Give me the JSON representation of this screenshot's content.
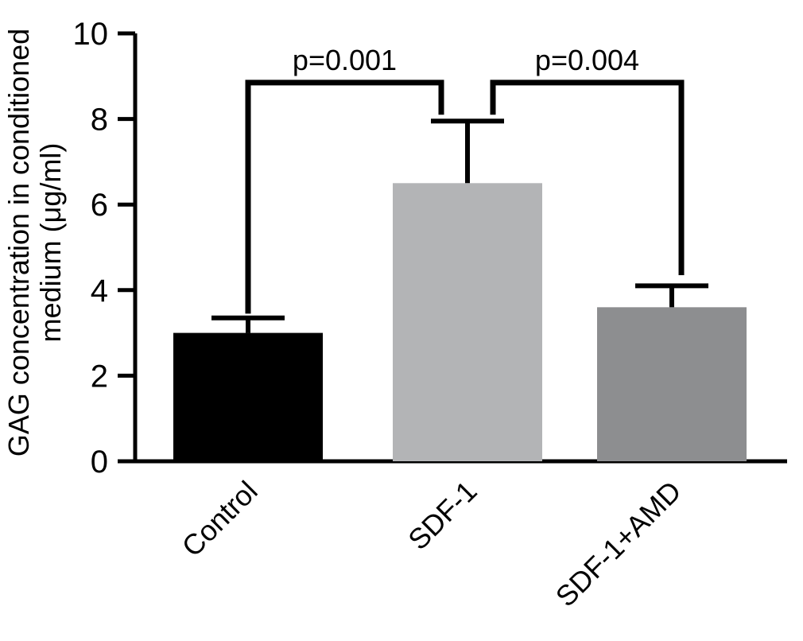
{
  "chart_data": {
    "type": "bar",
    "title": "",
    "ylabel_lines": [
      "GAG concentration in conditioned",
      "medium (μg/ml)"
    ],
    "xlabel": "",
    "categories": [
      "Control",
      "SDF-1",
      "SDF-1+AMD"
    ],
    "values": [
      3.0,
      6.5,
      3.6
    ],
    "errors_upper": [
      0.35,
      1.45,
      0.5
    ],
    "bar_colors": [
      "#000000",
      "#b3b4b6",
      "#8d8e90"
    ],
    "ylim": [
      0,
      10
    ],
    "yticks": [
      0,
      2,
      4,
      6,
      8,
      10
    ],
    "grid": false,
    "legend": "none",
    "significance": [
      {
        "label": "p=0.001",
        "from": 0,
        "to": 1,
        "top": 8.85,
        "from_drop": 3.45,
        "to_drop": 8.1,
        "from_dx": 0,
        "to_dx": -33
      },
      {
        "label": "p=0.004",
        "from": 1,
        "to": 2,
        "top": 8.85,
        "from_drop": 8.1,
        "to_drop": 4.35,
        "from_dx": 32,
        "to_dx": 12
      }
    ]
  },
  "style": {
    "axis_color": "#000000",
    "background": "#ffffff"
  }
}
